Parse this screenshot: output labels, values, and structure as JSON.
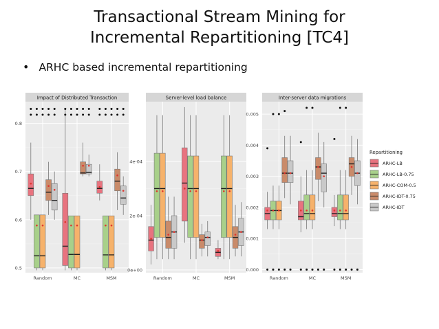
{
  "slide": {
    "title_line1": "Transactional Stream Mining for",
    "title_line2": "Incremental Repartitioning [TC4]",
    "bullet": "ARHC based incremental repartitioning"
  },
  "chart_data": [
    {
      "type": "boxplot",
      "title": "Impact of Distributed Transaction",
      "categories": [
        "Random",
        "MC",
        "MSM"
      ],
      "yticks": [
        "0.5",
        "0.6",
        "0.7",
        "0.8"
      ],
      "ylim": [
        0.49,
        0.845
      ],
      "series": [
        {
          "name": "ARHC-LB",
          "boxes": [
            {
              "min": 0.6,
              "q1": 0.65,
              "median": 0.665,
              "q3": 0.695,
              "max": 0.76,
              "mean": 0.675
            },
            {
              "min": 0.495,
              "q1": 0.505,
              "median": 0.545,
              "q3": 0.655,
              "max": 0.83,
              "mean": 0.595
            },
            {
              "min": 0.64,
              "q1": 0.655,
              "median": 0.665,
              "q3": 0.68,
              "max": 0.715,
              "mean": 0.668
            }
          ]
        },
        {
          "name": "ARHC-LB-0.75",
          "boxes": [
            {
              "min": 0.495,
              "q1": 0.5,
              "median": 0.525,
              "q3": 0.61,
              "max": 0.61,
              "mean": 0.588
            },
            {
              "min": 0.495,
              "q1": 0.5,
              "median": 0.528,
              "q3": 0.608,
              "max": 0.608,
              "mean": 0.588
            },
            {
              "min": 0.495,
              "q1": 0.5,
              "median": 0.527,
              "q3": 0.608,
              "max": 0.608,
              "mean": 0.588
            }
          ]
        },
        {
          "name": "ARHC-COM-0.5",
          "boxes": [
            {
              "min": 0.495,
              "q1": 0.5,
              "median": 0.525,
              "q3": 0.61,
              "max": 0.61,
              "mean": 0.588
            },
            {
              "min": 0.495,
              "q1": 0.5,
              "median": 0.528,
              "q3": 0.608,
              "max": 0.608,
              "mean": 0.588
            },
            {
              "min": 0.495,
              "q1": 0.5,
              "median": 0.527,
              "q3": 0.608,
              "max": 0.608,
              "mean": 0.588
            }
          ]
        },
        {
          "name": "ARHC-IDT-0.75",
          "boxes": [
            {
              "min": 0.61,
              "q1": 0.64,
              "median": 0.657,
              "q3": 0.683,
              "max": 0.72,
              "mean": 0.67
            },
            {
              "min": 0.69,
              "q1": 0.695,
              "median": 0.697,
              "q3": 0.72,
              "max": 0.76,
              "mean": 0.712
            },
            {
              "min": 0.62,
              "q1": 0.66,
              "median": 0.68,
              "q3": 0.705,
              "max": 0.74,
              "mean": 0.692
            }
          ]
        },
        {
          "name": "ARHC-IDT",
          "boxes": [
            {
              "min": 0.6,
              "q1": 0.62,
              "median": 0.64,
              "q3": 0.675,
              "max": 0.7,
              "mean": 0.662
            },
            {
              "min": 0.69,
              "q1": 0.695,
              "median": 0.698,
              "q3": 0.715,
              "max": 0.735,
              "mean": 0.712
            },
            {
              "min": 0.61,
              "q1": 0.632,
              "median": 0.645,
              "q3": 0.67,
              "max": 0.69,
              "mean": 0.66
            }
          ]
        }
      ],
      "outliers": [
        {
          "category": "Random",
          "values": [
            0.818,
            0.83
          ],
          "count_per_row": 5
        },
        {
          "category": "MC",
          "values": [
            0.818,
            0.83
          ],
          "count_per_row": 5
        },
        {
          "category": "MSM",
          "values": [
            0.818,
            0.83
          ],
          "count_per_row": 5
        }
      ]
    },
    {
      "type": "boxplot",
      "title": "Server-level load balance",
      "categories": [
        "Random",
        "MC",
        "MSM"
      ],
      "yticks": [
        "0e+00",
        "2e-04",
        "4e-04"
      ],
      "ytick_values": [
        0,
        0.0002,
        0.0004
      ],
      "ylim": [
        -1e-05,
        0.00062
      ],
      "series": [
        {
          "name": "ARHC-LB",
          "boxes": [
            {
              "min": 2e-05,
              "q1": 7e-05,
              "median": 0.00011,
              "q3": 0.00016,
              "max": 0.00024,
              "mean": 0.000115
            },
            {
              "min": 0.0001,
              "q1": 0.00018,
              "median": 0.00032,
              "q3": 0.00045,
              "max": 0.0006,
              "mean": 0.0003
            },
            {
              "min": 4e-05,
              "q1": 5e-05,
              "median": 6.5e-05,
              "q3": 8e-05,
              "max": 0.00011,
              "mean": 7e-05
            }
          ]
        },
        {
          "name": "ARHC-LB-0.75",
          "boxes": [
            {
              "min": 4e-05,
              "q1": 0.00012,
              "median": 0.0003,
              "q3": 0.00043,
              "max": 0.00057,
              "mean": 0.00029
            },
            {
              "min": 4e-05,
              "q1": 0.00012,
              "median": 0.0003,
              "q3": 0.00042,
              "max": 0.00057,
              "mean": 0.00029
            },
            {
              "min": 4e-05,
              "q1": 0.00012,
              "median": 0.0003,
              "q3": 0.00042,
              "max": 0.00057,
              "mean": 0.00029
            }
          ]
        },
        {
          "name": "ARHC-COM-0.5",
          "boxes": [
            {
              "min": 4e-05,
              "q1": 0.00012,
              "median": 0.0003,
              "q3": 0.00043,
              "max": 0.00057,
              "mean": 0.00029
            },
            {
              "min": 4e-05,
              "q1": 0.00012,
              "median": 0.0003,
              "q3": 0.00042,
              "max": 0.00057,
              "mean": 0.00029
            },
            {
              "min": 4e-05,
              "q1": 0.00012,
              "median": 0.0003,
              "q3": 0.00042,
              "max": 0.00057,
              "mean": 0.00029
            }
          ]
        },
        {
          "name": "ARHC-IDT-0.75",
          "boxes": [
            {
              "min": 4e-05,
              "q1": 8e-05,
              "median": 0.00012,
              "q3": 0.00018,
              "max": 0.00027,
              "mean": 0.00013
            },
            {
              "min": 5e-05,
              "q1": 8e-05,
              "median": 0.00011,
              "q3": 0.00013,
              "max": 0.00017,
              "mean": 0.00011
            },
            {
              "min": 5e-05,
              "q1": 8e-05,
              "median": 0.00012,
              "q3": 0.00016,
              "max": 0.00024,
              "mean": 0.00013
            }
          ]
        },
        {
          "name": "ARHC-IDT",
          "boxes": [
            {
              "min": 4e-05,
              "q1": 8e-05,
              "median": 0.00014,
              "q3": 0.0002,
              "max": 0.00027,
              "mean": 0.00014
            },
            {
              "min": 5e-05,
              "q1": 9e-05,
              "median": 0.00012,
              "q3": 0.00014,
              "max": 0.00018,
              "mean": 0.00012
            },
            {
              "min": 5e-05,
              "q1": 9e-05,
              "median": 0.00014,
              "q3": 0.00019,
              "max": 0.00025,
              "mean": 0.00014
            }
          ]
        }
      ]
    },
    {
      "type": "boxplot",
      "title": "Inter-server data migrations",
      "categories": [
        "Random",
        "MC",
        "MSM"
      ],
      "yticks": [
        "0.000",
        "0.001",
        "0.002",
        "0.003",
        "0.004",
        "0.005"
      ],
      "ylim": [
        -0.0001,
        0.0054
      ],
      "series": [
        {
          "name": "ARHC-LB",
          "boxes": [
            {
              "min": 0.0013,
              "q1": 0.0016,
              "median": 0.0018,
              "q3": 0.002,
              "max": 0.0025,
              "mean": 0.0019
            },
            {
              "min": 0.0012,
              "q1": 0.0016,
              "median": 0.0017,
              "q3": 0.0022,
              "max": 0.003,
              "mean": 0.0019
            },
            {
              "min": 0.0014,
              "q1": 0.0017,
              "median": 0.0018,
              "q3": 0.002,
              "max": 0.0024,
              "mean": 0.0019
            }
          ]
        },
        {
          "name": "ARHC-LB-0.75",
          "boxes": [
            {
              "min": 0.0013,
              "q1": 0.0016,
              "median": 0.0019,
              "q3": 0.0022,
              "max": 0.0027,
              "mean": 0.0019
            },
            {
              "min": 0.0013,
              "q1": 0.0016,
              "median": 0.0018,
              "q3": 0.0024,
              "max": 0.0032,
              "mean": 0.0019
            },
            {
              "min": 0.0013,
              "q1": 0.0016,
              "median": 0.0018,
              "q3": 0.0024,
              "max": 0.0032,
              "mean": 0.0019
            }
          ]
        },
        {
          "name": "ARHC-COM-0.5",
          "boxes": [
            {
              "min": 0.0013,
              "q1": 0.0016,
              "median": 0.0019,
              "q3": 0.0022,
              "max": 0.0027,
              "mean": 0.0019
            },
            {
              "min": 0.0013,
              "q1": 0.0016,
              "median": 0.0018,
              "q3": 0.0024,
              "max": 0.0032,
              "mean": 0.0019
            },
            {
              "min": 0.0013,
              "q1": 0.0016,
              "median": 0.0018,
              "q3": 0.0024,
              "max": 0.0032,
              "mean": 0.0019
            }
          ]
        },
        {
          "name": "ARHC-IDT-0.75",
          "boxes": [
            {
              "min": 0.0023,
              "q1": 0.0028,
              "median": 0.0031,
              "q3": 0.0036,
              "max": 0.0043,
              "mean": 0.0031
            },
            {
              "min": 0.0022,
              "q1": 0.0029,
              "median": 0.0033,
              "q3": 0.0036,
              "max": 0.0044,
              "mean": 0.0033
            },
            {
              "min": 0.0024,
              "q1": 0.003,
              "median": 0.0034,
              "q3": 0.0036,
              "max": 0.0043,
              "mean": 0.0033
            }
          ]
        },
        {
          "name": "ARHC-IDT",
          "boxes": [
            {
              "min": 0.0021,
              "q1": 0.0028,
              "median": 0.0031,
              "q3": 0.0035,
              "max": 0.0043,
              "mean": 0.0031
            },
            {
              "min": 0.002,
              "q1": 0.0025,
              "median": 0.0031,
              "q3": 0.0034,
              "max": 0.0041,
              "mean": 0.003
            },
            {
              "min": 0.0021,
              "q1": 0.0027,
              "median": 0.0031,
              "q3": 0.0035,
              "max": 0.0042,
              "mean": 0.0031
            }
          ]
        }
      ],
      "outliers_top": [
        {
          "category": "Random",
          "values": [
            0.0039,
            0.005,
            0.005,
            0.0051
          ]
        },
        {
          "category": "MC",
          "values": [
            0.0041,
            0.0052,
            0.0052
          ]
        },
        {
          "category": "MSM",
          "values": [
            0.0042,
            0.0052,
            0.0052
          ]
        }
      ],
      "outliers_bottom_value": 0.0,
      "outliers_bottom_count_per_group": 5
    }
  ],
  "legend": {
    "title": "Repartitioning",
    "items": [
      {
        "label": "ARHC-LB",
        "color": "#e8737f"
      },
      {
        "label": "ARHC-LB-0.75",
        "color": "#a8d08a"
      },
      {
        "label": "ARHC-COM-0.5",
        "color": "#f6b26b"
      },
      {
        "label": "ARHC-IDT-0.75",
        "color": "#c98b6a"
      },
      {
        "label": "ARHC-IDT",
        "color": "#c9c9c9"
      }
    ]
  },
  "style": {
    "panel_bg": "#ebebeb",
    "strip_bg": "#d6d6d6",
    "grid_color": "#ffffff",
    "mean_color": "#e0352e"
  }
}
